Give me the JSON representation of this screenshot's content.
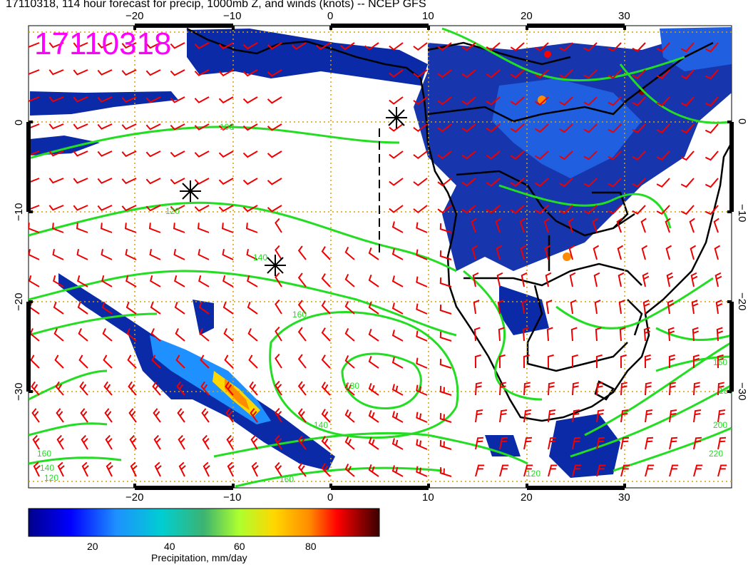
{
  "title": "17110318, 114 hour forecast for precip, 1000mb Z, and winds (knots) -- NCEP GFS",
  "stamp": "17110318",
  "map": {
    "lon_range": [
      -30,
      40
    ],
    "lat_range": [
      -40,
      10
    ],
    "top_axis_labels": [
      "−20",
      "−10",
      "0",
      "10",
      "20",
      "30"
    ],
    "bottom_axis_labels": [
      "−20",
      "−10",
      "0",
      "10",
      "20",
      "30"
    ],
    "left_axis_labels": [
      "0",
      "−10",
      "−20",
      "−30"
    ],
    "right_axis_labels": [
      "0",
      "−10",
      "−20",
      "−30"
    ],
    "contour_labels": [
      "100",
      "120",
      "140",
      "160",
      "180",
      "160",
      "140",
      "120",
      "160",
      "180",
      "200",
      "220",
      "120",
      "140",
      "160"
    ],
    "colors": {
      "land_border": "#000000",
      "contours": "#22dd22",
      "wind_barbs": "#ee0000",
      "grid": "#d9a000",
      "precip_low": "#000080",
      "precip_high": "#800000",
      "stamp": "#ff00ff"
    },
    "markers": [
      "asterisk",
      "asterisk",
      "asterisk"
    ]
  },
  "colorbar": {
    "ticks": [
      "20",
      "40",
      "60",
      "80"
    ],
    "label": "Precipitation, mm/day",
    "colors": [
      "#00008b",
      "#0000ff",
      "#1e90ff",
      "#00ced1",
      "#3cb371",
      "#adff2f",
      "#ffd700",
      "#ff8c00",
      "#ff0000",
      "#8b0000",
      "#3b0000"
    ]
  }
}
